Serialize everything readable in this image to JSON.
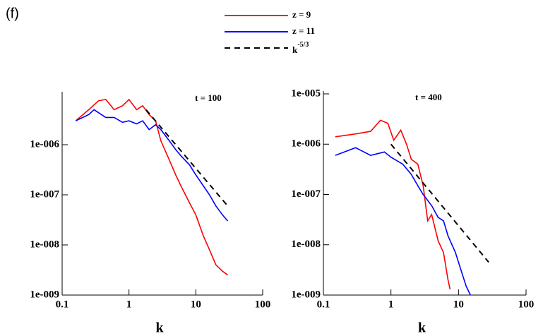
{
  "panel_label": "(f)",
  "chart_data": [
    {
      "type": "line",
      "annotation": "t = 100",
      "x_label": "k",
      "log_x": true,
      "log_y": true,
      "xlim": [
        0.1,
        100
      ],
      "xticks": [
        0.1,
        1,
        10,
        100
      ],
      "ylim": [
        1e-09,
        1e-05
      ],
      "yticks": [
        {
          "value": 1e-06,
          "label": "1e-006"
        },
        {
          "value": 1e-07,
          "label": "1e-007"
        },
        {
          "value": 1e-08,
          "label": "1e-008"
        },
        {
          "value": 1e-09,
          "label": "1e-009"
        }
      ],
      "series": [
        {
          "name": "z = 9",
          "color": "#ff0000",
          "x": [
            0.16,
            0.25,
            0.35,
            0.45,
            0.6,
            0.8,
            1.0,
            1.3,
            1.6,
            2,
            2.5,
            3,
            4,
            5,
            6,
            8,
            10,
            13,
            16,
            20,
            25,
            30
          ],
          "values": [
            3e-06,
            5e-06,
            7.5e-06,
            8e-06,
            5e-06,
            6e-06,
            8e-06,
            5e-06,
            6e-06,
            4e-06,
            3e-06,
            1.2e-06,
            5e-07,
            2.5e-07,
            1.5e-07,
            7e-08,
            4e-08,
            1.5e-08,
            8e-09,
            4e-09,
            3e-09,
            2.5e-09
          ]
        },
        {
          "name": "z = 11",
          "color": "#0000ff",
          "x": [
            0.16,
            0.25,
            0.3,
            0.45,
            0.6,
            0.8,
            1.0,
            1.3,
            1.6,
            2,
            2.5,
            3,
            4,
            5,
            6,
            8,
            10,
            13,
            16,
            20,
            25,
            30
          ],
          "values": [
            3e-06,
            4e-06,
            5e-06,
            3.5e-06,
            3.5e-06,
            2.8e-06,
            3e-06,
            2.6e-06,
            3e-06,
            2e-06,
            2.5e-06,
            2e-06,
            1.2e-06,
            8e-07,
            6e-07,
            4e-07,
            2.5e-07,
            1.5e-07,
            1e-07,
            6e-08,
            4e-08,
            3e-08
          ]
        },
        {
          "name": "k",
          "name_superscript": "-5/3",
          "color": "#000000",
          "dashed": true,
          "x": [
            1.8,
            30
          ],
          "values": [
            5e-06,
            6e-08
          ]
        }
      ]
    },
    {
      "type": "line",
      "annotation": "t = 400",
      "x_label": "k",
      "log_x": true,
      "log_y": true,
      "xlim": [
        0.1,
        100
      ],
      "xticks": [
        0.1,
        1,
        10,
        100
      ],
      "ylim": [
        1e-09,
        1e-05
      ],
      "yticks": [
        {
          "value": 1e-05,
          "label": "1e-005"
        },
        {
          "value": 1e-06,
          "label": "1e-006"
        },
        {
          "value": 1e-07,
          "label": "1e-007"
        },
        {
          "value": 1e-08,
          "label": "1e-008"
        },
        {
          "value": 1e-09,
          "label": "1e-009"
        }
      ],
      "series": [
        {
          "color": "#ff0000",
          "x": [
            0.15,
            0.3,
            0.5,
            0.7,
            0.9,
            1.1,
            1.4,
            1.7,
            2,
            2.5,
            3,
            3.5,
            4,
            5,
            6,
            7,
            7.5
          ],
          "values": [
            1.4e-06,
            1.6e-06,
            1.8e-06,
            3e-06,
            2.6e-06,
            1.2e-06,
            1.9e-06,
            1e-06,
            5e-07,
            4e-07,
            1.5e-07,
            3e-08,
            4e-08,
            1.2e-08,
            7e-09,
            2e-09,
            1.3e-09
          ]
        },
        {
          "color": "#0000ff",
          "x": [
            0.15,
            0.3,
            0.5,
            0.8,
            1,
            1.5,
            2,
            2.5,
            3,
            4,
            5,
            6,
            7,
            9,
            11,
            13,
            15
          ],
          "values": [
            6e-07,
            8.5e-07,
            6e-07,
            7e-07,
            5.5e-07,
            4e-07,
            2.5e-07,
            1.5e-07,
            1e-07,
            6e-08,
            3.5e-08,
            3e-08,
            1.5e-08,
            7e-09,
            3e-09,
            1.5e-09,
            1e-09
          ]
        },
        {
          "color": "#000000",
          "dashed": true,
          "x": [
            1,
            28
          ],
          "values": [
            1e-06,
            4.5e-09
          ]
        }
      ]
    }
  ]
}
